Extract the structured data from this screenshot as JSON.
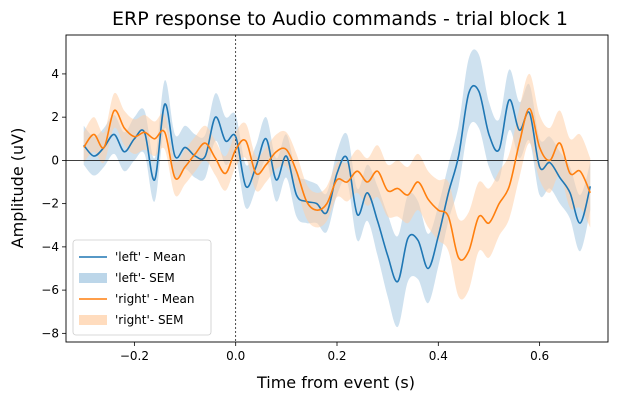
{
  "chart_data": {
    "type": "line",
    "title": "ERP response to Audio commands - trial block 1",
    "xlabel": "Time from event (s)",
    "ylabel": "Amplitude (uV)",
    "xlim": [
      -0.335,
      0.735
    ],
    "ylim": [
      -8.4,
      5.8
    ],
    "x_ticks": [
      -0.2,
      0.0,
      0.2,
      0.4,
      0.6
    ],
    "x_tick_labels": [
      "−0.2",
      "0.0",
      "0.2",
      "0.4",
      "0.6"
    ],
    "y_ticks": [
      -8,
      -6,
      -4,
      -2,
      0,
      2,
      4
    ],
    "y_tick_labels": [
      "−8",
      "−6",
      "−4",
      "−2",
      "0",
      "2",
      "4"
    ],
    "zero_hline": 0,
    "event_vline": 0,
    "legend_position": "lower-left",
    "grid": false,
    "series": [
      {
        "name": "'left' - Mean",
        "band_name": "'left'- SEM",
        "color": "#1f77b4",
        "band_color": "#a6c8e2",
        "x": [
          -0.3,
          -0.28,
          -0.26,
          -0.24,
          -0.22,
          -0.2,
          -0.18,
          -0.16,
          -0.14,
          -0.12,
          -0.1,
          -0.08,
          -0.06,
          -0.04,
          -0.02,
          0.0,
          0.02,
          0.04,
          0.06,
          0.08,
          0.1,
          0.12,
          0.14,
          0.16,
          0.18,
          0.2,
          0.22,
          0.24,
          0.26,
          0.28,
          0.3,
          0.32,
          0.34,
          0.36,
          0.38,
          0.4,
          0.42,
          0.44,
          0.46,
          0.48,
          0.5,
          0.52,
          0.54,
          0.56,
          0.58,
          0.6,
          0.62,
          0.64,
          0.66,
          0.68,
          0.7
        ],
        "mean": [
          0.7,
          0.2,
          0.6,
          1.2,
          0.4,
          1.0,
          1.3,
          -0.9,
          2.6,
          0.2,
          0.6,
          0.2,
          0.2,
          2.0,
          0.9,
          1.1,
          -1.2,
          -0.3,
          1.0,
          -0.9,
          0.2,
          -1.6,
          -1.9,
          -2.0,
          -2.4,
          -0.6,
          0.1,
          -2.5,
          -1.5,
          -2.8,
          -4.4,
          -5.6,
          -3.6,
          -3.7,
          -5.0,
          -3.5,
          -1.5,
          0.2,
          3.1,
          3.2,
          1.2,
          0.5,
          2.8,
          1.4,
          2.2,
          -0.3,
          -0.1,
          -0.8,
          -1.5,
          -2.9,
          -1.2
        ],
        "sem": [
          0.9,
          0.9,
          0.9,
          0.9,
          0.9,
          1.0,
          1.0,
          1.0,
          1.1,
          1.0,
          1.0,
          1.0,
          1.0,
          1.1,
          1.1,
          1.0,
          1.0,
          1.0,
          1.0,
          1.0,
          1.0,
          1.0,
          1.0,
          0.9,
          0.9,
          1.0,
          1.1,
          1.2,
          1.3,
          1.6,
          1.9,
          2.1,
          2.0,
          1.8,
          1.6,
          1.4,
          1.3,
          1.4,
          1.6,
          1.7,
          1.5,
          1.4,
          1.4,
          1.3,
          1.3,
          1.3,
          1.2,
          1.2,
          1.2,
          1.3,
          1.1
        ]
      },
      {
        "name": "'right' - Mean",
        "band_name": "'right'- SEM",
        "color": "#ff7f0e",
        "band_color": "#ffd0a8",
        "x": [
          -0.3,
          -0.28,
          -0.26,
          -0.24,
          -0.22,
          -0.2,
          -0.18,
          -0.16,
          -0.14,
          -0.12,
          -0.1,
          -0.08,
          -0.06,
          -0.04,
          -0.02,
          0.0,
          0.02,
          0.04,
          0.06,
          0.08,
          0.1,
          0.12,
          0.14,
          0.16,
          0.18,
          0.2,
          0.22,
          0.24,
          0.26,
          0.28,
          0.3,
          0.32,
          0.34,
          0.36,
          0.38,
          0.4,
          0.42,
          0.44,
          0.46,
          0.48,
          0.5,
          0.52,
          0.54,
          0.56,
          0.58,
          0.6,
          0.62,
          0.64,
          0.66,
          0.68,
          0.7
        ],
        "mean": [
          0.6,
          1.2,
          0.6,
          2.3,
          1.5,
          1.1,
          1.3,
          1.0,
          1.3,
          -0.8,
          -0.3,
          0.3,
          0.8,
          0.1,
          -0.6,
          0.5,
          0.9,
          -0.6,
          -0.2,
          0.4,
          0.5,
          -0.5,
          -1.9,
          -2.3,
          -2.0,
          -0.9,
          -1.0,
          -0.5,
          -1.0,
          -0.5,
          -1.4,
          -1.3,
          -1.6,
          -1.0,
          -1.8,
          -2.3,
          -2.6,
          -4.5,
          -4.2,
          -2.6,
          -2.9,
          -2.0,
          -1.2,
          0.8,
          2.4,
          0.6,
          0.0,
          0.8,
          -0.6,
          -0.5,
          -1.5
        ],
        "sem": [
          0.7,
          0.8,
          0.7,
          0.8,
          0.8,
          0.8,
          0.8,
          0.8,
          0.8,
          0.8,
          0.8,
          0.8,
          0.8,
          0.8,
          0.8,
          0.8,
          0.8,
          0.8,
          0.8,
          0.8,
          0.8,
          0.8,
          0.8,
          0.8,
          0.8,
          0.8,
          0.9,
          1.0,
          1.1,
          1.2,
          1.2,
          1.3,
          1.3,
          1.3,
          1.3,
          1.4,
          1.6,
          1.8,
          1.8,
          1.6,
          1.6,
          1.5,
          1.5,
          1.6,
          1.6,
          1.5,
          1.5,
          1.5,
          1.6,
          1.7,
          1.6
        ]
      }
    ]
  }
}
